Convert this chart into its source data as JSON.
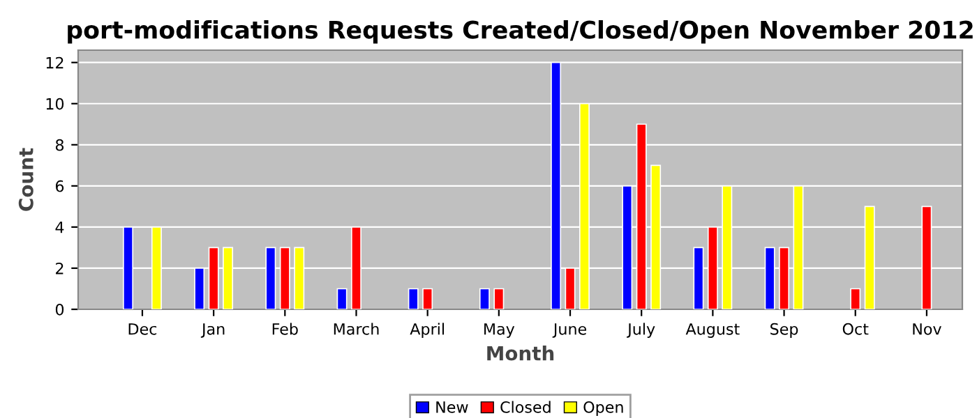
{
  "chart_data": {
    "type": "bar",
    "title": "port-modifications Requests Created/Closed/Open November 2012",
    "xlabel": "Month",
    "ylabel": "Count",
    "categories": [
      "Dec",
      "Jan",
      "Feb",
      "March",
      "April",
      "May",
      "June",
      "July",
      "August",
      "Sep",
      "Oct",
      "Nov"
    ],
    "series": [
      {
        "name": "New",
        "color": "#0000ff",
        "values": [
          4,
          2,
          3,
          1,
          1,
          1,
          12,
          6,
          3,
          3,
          null,
          null
        ]
      },
      {
        "name": "Closed",
        "color": "#ff0000",
        "values": [
          null,
          3,
          3,
          4,
          1,
          1,
          2,
          9,
          4,
          3,
          1,
          5
        ]
      },
      {
        "name": "Open",
        "color": "#ffff00",
        "values": [
          4,
          3,
          3,
          null,
          null,
          null,
          10,
          7,
          6,
          6,
          5,
          null
        ]
      }
    ],
    "ylim": [
      0,
      12.6
    ],
    "yticks": [
      0,
      2,
      4,
      6,
      8,
      10,
      12
    ],
    "grid": "y",
    "legend": "bottom"
  }
}
